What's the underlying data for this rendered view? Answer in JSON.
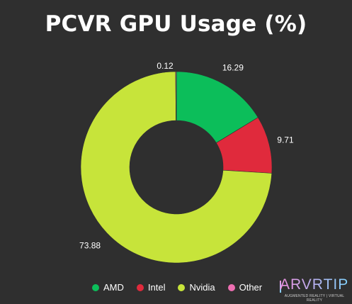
{
  "chart_data": {
    "type": "pie",
    "title": "PCVR GPU Usage (%)",
    "labels": [
      "AMD",
      "Intel",
      "Nvidia",
      "Other"
    ],
    "values": [
      16.29,
      9.71,
      73.88,
      0.12
    ],
    "colors": [
      "#0cbe5a",
      "#e02a3c",
      "#c7e43a",
      "#ee6fb2"
    ],
    "donut": true,
    "legend_position": "bottom"
  },
  "logo": {
    "text": "ARVRTIPS",
    "tagline": "AUGMENTED REALITY | VIRTUAL REALITY",
    "colors": [
      "#f08fe0",
      "#7fd4ff"
    ]
  }
}
